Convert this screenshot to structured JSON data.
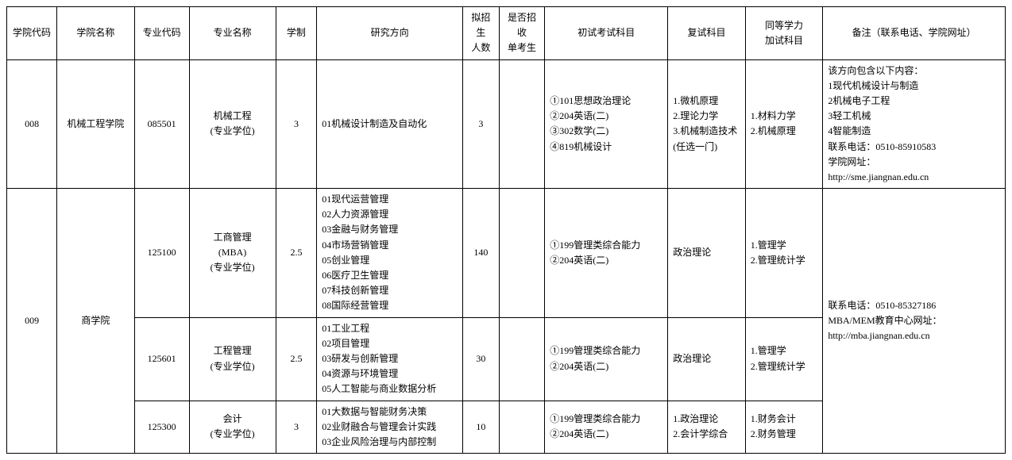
{
  "table": {
    "columns": [
      "学院代码",
      "学院名称",
      "专业代码",
      "专业名称",
      "学制",
      "研究方向",
      "拟招生\n人数",
      "是否招收\n单考生",
      "初试考试科目",
      "复试科目",
      "同等学力\n加试科目",
      "备注（联系电话、学院网址）"
    ],
    "rows": {
      "r1": {
        "college_code": "008",
        "college_name": "机械工程学院",
        "major_code": "085501",
        "major_name": "机械工程\n(专业学位)",
        "duration": "3",
        "direction": "01机械设计制造及自动化",
        "enrollment": "3",
        "single_exam": "",
        "initial_exam": "①101思想政治理论\n②204英语(二)\n③302数学(二)\n④819机械设计",
        "retest": "1.微机原理\n2.理论力学\n3.机械制造技术\n(任选一门)",
        "additional": "1.材料力学\n2.机械原理",
        "note": "该方向包含以下内容：\n1现代机械设计与制造\n2机械电子工程\n3轻工机械\n4智能制造\n联系电话：0510-85910583\n学院网址：\nhttp://sme.jiangnan.edu.cn"
      },
      "r2": {
        "college_code": "009",
        "college_name": "商学院",
        "major_code": "125100",
        "major_name": "工商管理\n(MBA)\n(专业学位)",
        "duration": "2.5",
        "direction": "01现代运营管理\n02人力资源管理\n03金融与财务管理\n04市场营销管理\n05创业管理\n06医疗卫生管理\n07科技创新管理\n08国际经营管理",
        "enrollment": "140",
        "single_exam": "",
        "initial_exam": "①199管理类综合能力\n②204英语(二)",
        "retest": "政治理论",
        "additional": "1.管理学\n2.管理统计学",
        "note": "联系电话：0510-85327186\nMBA/MEM教育中心网址：\nhttp://mba.jiangnan.edu.cn"
      },
      "r3": {
        "major_code": "125601",
        "major_name": "工程管理\n(专业学位)",
        "duration": "2.5",
        "direction": "01工业工程\n02项目管理\n03研发与创新管理\n04资源与环境管理\n05人工智能与商业数据分析",
        "enrollment": "30",
        "single_exam": "",
        "initial_exam": "①199管理类综合能力\n②204英语(二)",
        "retest": "政治理论",
        "additional": "1.管理学\n2.管理统计学"
      },
      "r4": {
        "major_code": "125300",
        "major_name": "会计\n(专业学位)",
        "duration": "3",
        "direction": "01大数据与智能财务决策\n02业财融合与管理会计实践\n03企业风险治理与内部控制",
        "enrollment": "10",
        "single_exam": "",
        "initial_exam": "①199管理类综合能力\n②204英语(二)",
        "retest": "1.政治理论\n2.会计学综合",
        "additional": "1.财务会计\n2.财务管理"
      }
    }
  }
}
